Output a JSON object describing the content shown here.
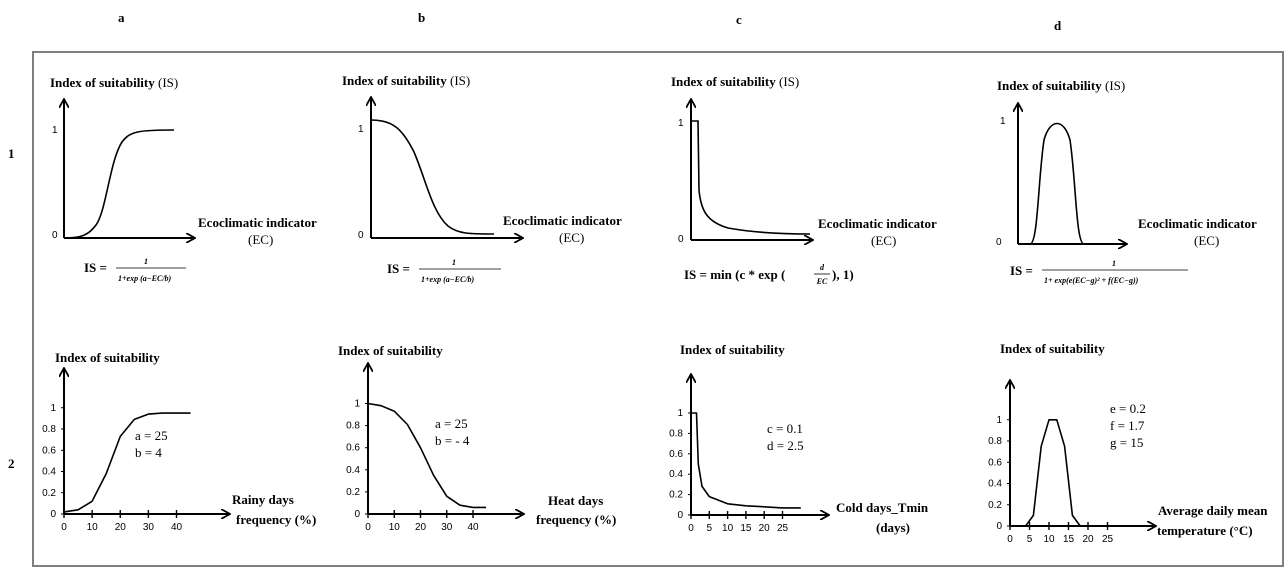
{
  "column_labels": [
    "a",
    "b",
    "c",
    "d"
  ],
  "row_labels": [
    "1",
    "2"
  ],
  "colors": {
    "line": "#000000",
    "frame": "#7f7f7f",
    "background": "#ffffff"
  },
  "row1": {
    "ylabel_bold": "Index of suitability",
    "ylabel_normal": "(IS)",
    "xlabel": "Ecoclimatic indicator",
    "xunit": "(EC)",
    "formulas": {
      "logistic_lhs": "IS =",
      "logistic_num": "1",
      "logistic_den_a": "1+exp (",
      "logistic_den_frac_num": "a−EC",
      "logistic_den_frac_den": "b",
      "logistic_den_b": ")",
      "c_lhs": "IS = min (c * exp (",
      "c_frac_num": "d",
      "c_frac_den": "EC",
      "c_rhs": "), 1)",
      "d_lhs": "IS =",
      "d_num": "1",
      "d_den": "1+ exp(e(EC−g)² + f(EC−g))"
    }
  },
  "row2": {
    "ylabel": "Index of suitability",
    "xlabels": [
      [
        "Rainy days",
        "frequency (%)"
      ],
      [
        "Heat days",
        "frequency (%)"
      ],
      [
        "Cold days_Tmin",
        "(days)"
      ],
      [
        "Average daily mean",
        "temperature (°C)"
      ]
    ],
    "params": [
      [
        "a = 25",
        "b =  4"
      ],
      [
        "a = 25",
        "b = - 4"
      ],
      [
        "c = 0.1",
        "d = 2.5"
      ],
      [
        "e = 0.2",
        "f = 1.7",
        "g = 15"
      ]
    ]
  },
  "chart_data": [
    {
      "panel": "1a",
      "type": "line",
      "title": "",
      "x": [],
      "ylim": [
        0,
        1
      ],
      "yticks": [
        "0",
        "1"
      ],
      "shape": "increasing logistic"
    },
    {
      "panel": "1b",
      "type": "line",
      "title": "",
      "x": [],
      "ylim": [
        0,
        1
      ],
      "yticks": [
        "0",
        "1"
      ],
      "shape": "decreasing logistic"
    },
    {
      "panel": "1c",
      "type": "line",
      "title": "",
      "x": [],
      "ylim": [
        0,
        1
      ],
      "yticks": [
        "0",
        "1"
      ],
      "shape": "min(c*exp(d/EC),1)"
    },
    {
      "panel": "1d",
      "type": "line",
      "title": "",
      "x": [],
      "ylim": [
        0,
        1
      ],
      "yticks": [
        "0",
        "1"
      ],
      "shape": "bell"
    },
    {
      "panel": "2a",
      "type": "line",
      "title": "",
      "x": [
        0,
        5,
        10,
        15,
        20,
        25,
        30,
        35,
        40,
        45
      ],
      "series": [
        {
          "values": [
            0.02,
            0.04,
            0.12,
            0.38,
            0.73,
            0.89,
            0.94,
            0.95,
            0.95,
            0.95
          ]
        }
      ],
      "xticks": [
        "0",
        "10",
        "20",
        "30",
        "40"
      ],
      "yticks": [
        "0",
        "0.2",
        "0.4",
        "0.6",
        "0.8",
        "1"
      ],
      "ylim": [
        0,
        1
      ]
    },
    {
      "panel": "2b",
      "type": "line",
      "title": "",
      "x": [
        0,
        5,
        10,
        15,
        20,
        25,
        30,
        35,
        40,
        45
      ],
      "series": [
        {
          "values": [
            1.0,
            0.98,
            0.93,
            0.81,
            0.6,
            0.35,
            0.16,
            0.08,
            0.06,
            0.06
          ]
        }
      ],
      "xticks": [
        "0",
        "10",
        "20",
        "30",
        "40"
      ],
      "yticks": [
        "0",
        "0.2",
        "0.4",
        "0.6",
        "0.8",
        "1"
      ],
      "ylim": [
        0,
        1
      ]
    },
    {
      "panel": "2c",
      "type": "line",
      "title": "",
      "x": [
        0,
        1.5,
        2,
        3,
        5,
        10,
        15,
        20,
        25,
        30
      ],
      "series": [
        {
          "values": [
            1,
            1,
            0.5,
            0.28,
            0.18,
            0.11,
            0.09,
            0.08,
            0.07,
            0.07
          ]
        }
      ],
      "xticks": [
        "0",
        "5",
        "10",
        "15",
        "20",
        "25"
      ],
      "yticks": [
        "0",
        "0.2",
        "0.4",
        "0.6",
        "0.8",
        "1"
      ],
      "ylim": [
        0,
        1
      ]
    },
    {
      "panel": "2d",
      "type": "line",
      "title": "",
      "x": [
        0,
        4,
        6,
        8,
        10,
        12,
        14,
        16,
        18,
        30
      ],
      "series": [
        {
          "values": [
            0,
            0,
            0.1,
            0.75,
            1.0,
            1.0,
            0.75,
            0.1,
            0,
            0
          ]
        }
      ],
      "xticks": [
        "0",
        "5",
        "10",
        "15",
        "20",
        "25"
      ],
      "yticks": [
        "0",
        "0.2",
        "0.4",
        "0.6",
        "0.8",
        "1"
      ],
      "ylim": [
        0,
        1
      ]
    }
  ]
}
